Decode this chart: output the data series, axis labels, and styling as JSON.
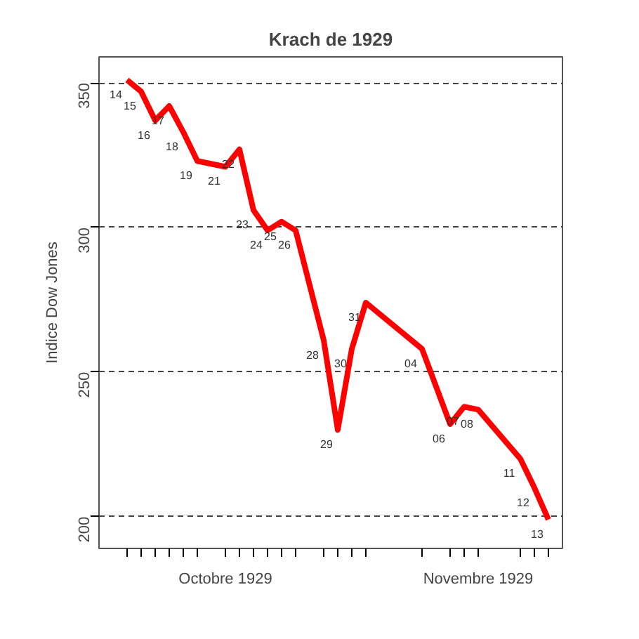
{
  "chart_data": {
    "type": "line",
    "title": "Krach de 1929",
    "ylabel": "Indice Dow Jones",
    "x": [
      "1929-10-14",
      "1929-10-15",
      "1929-10-16",
      "1929-10-17",
      "1929-10-18",
      "1929-10-19",
      "1929-10-21",
      "1929-10-22",
      "1929-10-23",
      "1929-10-24",
      "1929-10-25",
      "1929-10-26",
      "1929-10-28",
      "1929-10-29",
      "1929-10-30",
      "1929-10-31",
      "1929-11-04",
      "1929-11-06",
      "1929-11-07",
      "1929-11-08",
      "1929-11-11",
      "1929-11-12",
      "1929-11-13"
    ],
    "series": [
      {
        "color": "#ff0000",
        "values": [
          351,
          347,
          337,
          342,
          333,
          323,
          321,
          327,
          306,
          299,
          302,
          299,
          261,
          230,
          258,
          274,
          258,
          232,
          238,
          237,
          220,
          210,
          199
        ]
      }
    ],
    "xlim": [
      "1929-10-12",
      "1929-11-14"
    ],
    "ylim": [
      189,
      359
    ],
    "xticks": [
      {
        "value": "1929-10-14",
        "label": null
      },
      {
        "value": "1929-10-15",
        "label": null
      },
      {
        "value": "1929-10-16",
        "label": null
      },
      {
        "value": "1929-10-17",
        "label": null
      },
      {
        "value": "1929-10-18",
        "label": null
      },
      {
        "value": "1929-10-19",
        "label": null
      },
      {
        "value": "1929-10-21",
        "label": "Octobre 1929"
      },
      {
        "value": "1929-10-22",
        "label": null
      },
      {
        "value": "1929-10-23",
        "label": null
      },
      {
        "value": "1929-10-24",
        "label": null
      },
      {
        "value": "1929-10-25",
        "label": null
      },
      {
        "value": "1929-10-26",
        "label": null
      },
      {
        "value": "1929-10-28",
        "label": null
      },
      {
        "value": "1929-10-29",
        "label": null
      },
      {
        "value": "1929-10-30",
        "label": null
      },
      {
        "value": "1929-10-31",
        "label": null
      },
      {
        "value": "1929-11-04",
        "label": null
      },
      {
        "value": "1929-11-06",
        "label": null
      },
      {
        "value": "1929-11-07",
        "label": null
      },
      {
        "value": "1929-11-08",
        "label": "Novembre 1929"
      },
      {
        "value": "1929-11-11",
        "label": null
      },
      {
        "value": "1929-11-12",
        "label": null
      },
      {
        "value": "1929-11-13",
        "label": null
      }
    ],
    "yticks": [
      200,
      250,
      300,
      350
    ],
    "grid": "y",
    "marker": "none",
    "line_style": "solid",
    "annotations": [
      {
        "text": "14",
        "x": "1929-10-14",
        "y": 351
      },
      {
        "text": "15",
        "x": "1929-10-15",
        "y": 347
      },
      {
        "text": "16",
        "x": "1929-10-16",
        "y": 337
      },
      {
        "text": "17",
        "x": "1929-10-17",
        "y": 342
      },
      {
        "text": "18",
        "x": "1929-10-18",
        "y": 333
      },
      {
        "text": "19",
        "x": "1929-10-19",
        "y": 323
      },
      {
        "text": "21",
        "x": "1929-10-21",
        "y": 321
      },
      {
        "text": "22",
        "x": "1929-10-22",
        "y": 327
      },
      {
        "text": "23",
        "x": "1929-10-23",
        "y": 306
      },
      {
        "text": "24",
        "x": "1929-10-24",
        "y": 299
      },
      {
        "text": "25",
        "x": "1929-10-25",
        "y": 302
      },
      {
        "text": "26",
        "x": "1929-10-26",
        "y": 299
      },
      {
        "text": "28",
        "x": "1929-10-28",
        "y": 261
      },
      {
        "text": "29",
        "x": "1929-10-29",
        "y": 230
      },
      {
        "text": "30",
        "x": "1929-10-30",
        "y": 258
      },
      {
        "text": "31",
        "x": "1929-10-31",
        "y": 274
      },
      {
        "text": "04",
        "x": "1929-11-04",
        "y": 258
      },
      {
        "text": "06",
        "x": "1929-11-06",
        "y": 232
      },
      {
        "text": "07",
        "x": "1929-11-07",
        "y": 238
      },
      {
        "text": "08",
        "x": "1929-11-08",
        "y": 237
      },
      {
        "text": "11",
        "x": "1929-11-11",
        "y": 220
      },
      {
        "text": "12",
        "x": "1929-11-12",
        "y": 210
      },
      {
        "text": "13",
        "x": "1929-11-13",
        "y": 199
      }
    ]
  }
}
